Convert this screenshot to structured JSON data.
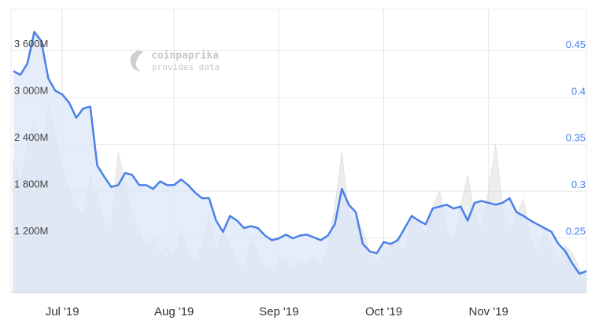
{
  "chart_data": {
    "type": "line",
    "watermark": {
      "title": "coinpaprika",
      "subtitle": "provides data"
    },
    "categories": [
      null,
      null,
      null,
      null,
      null,
      null,
      null,
      "Jul '19",
      null,
      null,
      null,
      null,
      null,
      null,
      null,
      null,
      null,
      null,
      null,
      null,
      null,
      null,
      null,
      "Aug '19",
      null,
      null,
      null,
      null,
      null,
      null,
      null,
      null,
      null,
      null,
      null,
      null,
      null,
      null,
      "Sep '19",
      null,
      null,
      null,
      null,
      null,
      null,
      null,
      null,
      null,
      null,
      null,
      null,
      null,
      null,
      "Oct '19",
      null,
      null,
      null,
      null,
      null,
      null,
      null,
      null,
      null,
      null,
      null,
      null,
      null,
      null,
      "Nov '19",
      null,
      null,
      null,
      null,
      null,
      null,
      null,
      null,
      null,
      null,
      null,
      null,
      null,
      null
    ],
    "series": [
      {
        "name": "Volume",
        "style": "area",
        "color": "#d6d6d6",
        "values": [
          2200,
          1900,
          2400,
          2700,
          2300,
          2900,
          2500,
          2100,
          1800,
          1600,
          1500,
          2000,
          1700,
          1400,
          1300,
          2300,
          1900,
          1500,
          1300,
          1100,
          1200,
          1000,
          1100,
          900,
          1300,
          1000,
          900,
          1100,
          1500,
          1000,
          1300,
          1100,
          900,
          800,
          1200,
          1000,
          850,
          800,
          900,
          950,
          800,
          900,
          850,
          950,
          800,
          1100,
          1600,
          2300,
          1500,
          1400,
          1300,
          1000,
          900,
          1000,
          1100,
          1200,
          1000,
          1500,
          1400,
          1200,
          1600,
          1800,
          1300,
          1100,
          1600,
          2000,
          1500,
          1300,
          1800,
          2400,
          1600,
          1300,
          1500,
          1700,
          1200,
          1000,
          1300,
          1100,
          900,
          1100,
          1000,
          800,
          700
        ]
      },
      {
        "name": "Price",
        "style": "line",
        "axis": "y2",
        "color": "#4a80e8",
        "area_color": "#dbe5f8",
        "values": [
          0.429,
          0.425,
          0.437,
          0.471,
          0.461,
          0.421,
          0.408,
          0.404,
          0.395,
          0.379,
          0.389,
          0.391,
          0.328,
          0.316,
          0.305,
          0.307,
          0.32,
          0.318,
          0.307,
          0.307,
          0.303,
          0.311,
          0.307,
          0.307,
          0.313,
          0.307,
          0.299,
          0.293,
          0.293,
          0.269,
          0.257,
          0.274,
          0.269,
          0.261,
          0.263,
          0.261,
          0.253,
          0.248,
          0.25,
          0.254,
          0.25,
          0.253,
          0.254,
          0.251,
          0.248,
          0.253,
          0.265,
          0.303,
          0.286,
          0.278,
          0.244,
          0.236,
          0.234,
          0.246,
          0.244,
          0.248,
          0.261,
          0.274,
          0.269,
          0.265,
          0.282,
          0.284,
          0.286,
          0.282,
          0.284,
          0.269,
          0.288,
          0.29,
          0.288,
          0.286,
          0.288,
          0.293,
          0.278,
          0.274,
          0.269,
          0.265,
          0.261,
          0.257,
          0.244,
          0.236,
          0.223,
          0.212,
          0.215
        ]
      }
    ],
    "ylim": [
      500,
      4130
    ],
    "yticks": [
      {
        "value": 1200,
        "label": "1 200M"
      },
      {
        "value": 1800,
        "label": "1 800M"
      },
      {
        "value": 2400,
        "label": "2 400M"
      },
      {
        "value": 3000,
        "label": "3 000M"
      },
      {
        "value": 3600,
        "label": "3 600M"
      }
    ],
    "y2lim": [
      0.192,
      0.495
    ],
    "y2ticks": [
      0.25,
      0.3,
      0.35,
      0.4,
      0.45
    ],
    "grid": true
  }
}
